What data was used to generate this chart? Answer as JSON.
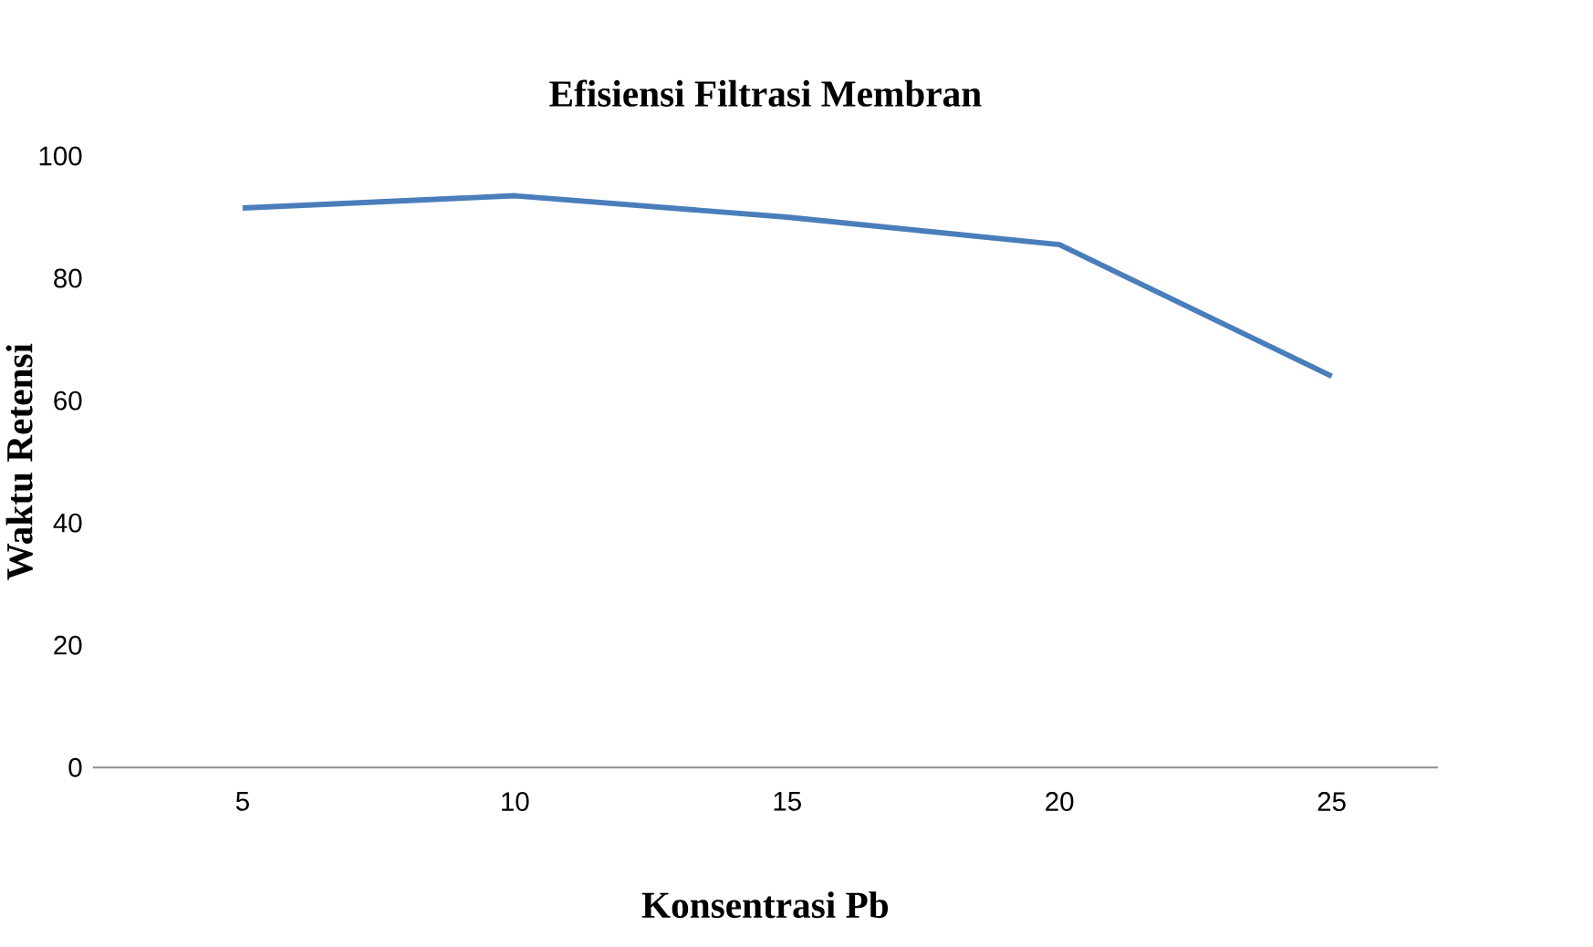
{
  "chart_data": {
    "type": "line",
    "title": "Efisiensi Filtrasi Membran",
    "xlabel": "Konsentrasi Pb",
    "ylabel": "Waktu  Retensi",
    "categories": [
      "5",
      "10",
      "15",
      "20",
      "25"
    ],
    "values": [
      91.5,
      93.5,
      90,
      85.5,
      64
    ],
    "color": "#4a7ebb",
    "ylim": [
      0,
      100
    ],
    "yticks": [
      0,
      20,
      40,
      60,
      80,
      100
    ]
  }
}
